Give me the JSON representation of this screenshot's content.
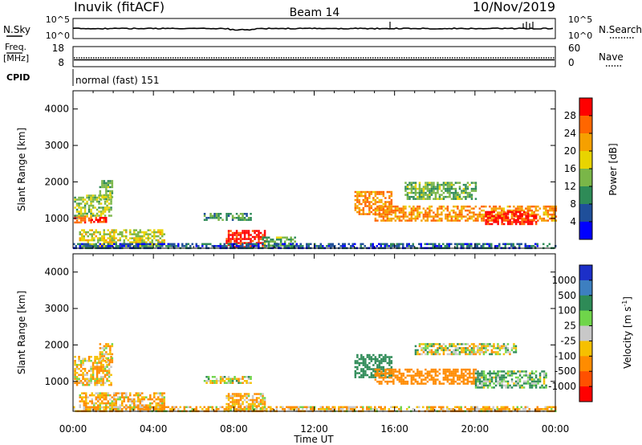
{
  "header": {
    "site": "Inuvik (fitACF)",
    "beam": "Beam 14",
    "date": "10/Nov/2019"
  },
  "noise_panel": {
    "left_label": "N.Sky",
    "right_label": "N.Search",
    "left_ticks": [
      "10^5",
      "10^0"
    ],
    "right_ticks": [
      "10^5",
      "10^0"
    ]
  },
  "freq_panel": {
    "left_label_top": "Freq.",
    "left_label_bottom": "[MHz]",
    "left_ticks": [
      "18",
      "8"
    ],
    "right_label": "Nave",
    "right_ticks": [
      "60",
      "0"
    ]
  },
  "cpid": {
    "label": "CPID",
    "mode": "normal (fast) 151"
  },
  "power_panel": {
    "ylabel": "Slant Range [km]",
    "yticks": [
      "4000",
      "3000",
      "2000",
      "1000"
    ],
    "colorbar_label": "Power [dB]",
    "colorbar_ticks": [
      "28",
      "24",
      "20",
      "16",
      "12",
      "8",
      "4"
    ],
    "colorbar_colors": [
      "#ff0000",
      "#ff6600",
      "#f6a000",
      "#e8d400",
      "#7ab648",
      "#2e8b57",
      "#1f4f9a",
      "#0000ff"
    ]
  },
  "velocity_panel": {
    "ylabel": "Slant Range [km]",
    "yticks": [
      "4000",
      "3000",
      "2000",
      "1000"
    ],
    "colorbar_label": "Velocity [m s",
    "colorbar_label_sup": "-1",
    "colorbar_label_end": "]",
    "colorbar_ticks": [
      "1000",
      "500",
      "100",
      "25",
      "-25",
      "-100",
      "-500",
      "-1000"
    ],
    "colorbar_colors": [
      "#1c2fc8",
      "#3d7fc0",
      "#2e8b57",
      "#6fd54a",
      "#c8c8c8",
      "#f6c000",
      "#ff8c00",
      "#ff5000",
      "#ff0000"
    ]
  },
  "xaxis": {
    "ticks": [
      "00:00",
      "04:00",
      "08:00",
      "12:00",
      "16:00",
      "20:00",
      "00:00"
    ],
    "label": "Time UT"
  },
  "chart_data": [
    {
      "type": "heatmap",
      "title": "Power",
      "x_unit": "UT hours",
      "xlim": [
        0,
        24
      ],
      "y_unit": "km",
      "ylim": [
        180,
        4500
      ],
      "z_unit": "dB",
      "zlim": [
        0,
        30
      ],
      "regions": [
        {
          "t0": 0.05,
          "t1": 0.9,
          "r0": 880,
          "r1": 1080,
          "z": 25
        },
        {
          "t0": 0.9,
          "t1": 1.6,
          "r0": 880,
          "r1": 1040,
          "z": 27
        },
        {
          "t0": 0.05,
          "t1": 1.9,
          "r0": 1080,
          "r1": 1650,
          "z": 14
        },
        {
          "t0": 1.3,
          "t1": 1.9,
          "r0": 1500,
          "r1": 2050,
          "z": 12
        },
        {
          "t0": 0.3,
          "t1": 4.5,
          "r0": 250,
          "r1": 700,
          "z": 16
        },
        {
          "t0": 6.5,
          "t1": 8.8,
          "r0": 950,
          "r1": 1150,
          "z": 10
        },
        {
          "t0": 7.6,
          "t1": 9.5,
          "r0": 200,
          "r1": 680,
          "z": 28
        },
        {
          "t0": 9.4,
          "t1": 11.0,
          "r0": 200,
          "r1": 500,
          "z": 12
        },
        {
          "t0": 14.0,
          "t1": 15.8,
          "r0": 1100,
          "r1": 1750,
          "z": 22
        },
        {
          "t0": 15.0,
          "t1": 24.0,
          "r0": 950,
          "r1": 1350,
          "z": 22
        },
        {
          "t0": 16.5,
          "t1": 20.0,
          "r0": 1550,
          "r1": 2000,
          "z": 12
        },
        {
          "t0": 20.5,
          "t1": 23.0,
          "r0": 850,
          "r1": 1200,
          "z": 28
        },
        {
          "t0": 0.0,
          "t1": 24.0,
          "r0": 180,
          "r1": 320,
          "z": 6
        }
      ]
    },
    {
      "type": "heatmap",
      "title": "Velocity",
      "x_unit": "UT hours",
      "xlim": [
        0,
        24
      ],
      "y_unit": "km",
      "ylim": [
        180,
        4500
      ],
      "z_unit": "m s-1",
      "zlim": [
        -1000,
        1000
      ],
      "regions": [
        {
          "t0": 0.05,
          "t1": 1.9,
          "r0": 900,
          "r1": 1700,
          "z": -100
        },
        {
          "t0": 1.3,
          "t1": 1.9,
          "r0": 1500,
          "r1": 2050,
          "z": -100
        },
        {
          "t0": 0.3,
          "t1": 4.5,
          "r0": 250,
          "r1": 700,
          "z": -100
        },
        {
          "t0": 6.5,
          "t1": 8.8,
          "r0": 950,
          "r1": 1150,
          "z": 0
        },
        {
          "t0": 7.6,
          "t1": 9.5,
          "r0": 200,
          "r1": 680,
          "z": -100
        },
        {
          "t0": 14.0,
          "t1": 15.8,
          "r0": 1100,
          "r1": 1750,
          "z": 300
        },
        {
          "t0": 15.0,
          "t1": 20.0,
          "r0": 950,
          "r1": 1350,
          "z": -300
        },
        {
          "t0": 20.0,
          "t1": 23.5,
          "r0": 850,
          "r1": 1300,
          "z": 100
        },
        {
          "t0": 17.0,
          "t1": 22.0,
          "r0": 1750,
          "r1": 2050,
          "z": 0
        },
        {
          "t0": 0.0,
          "t1": 24.0,
          "r0": 180,
          "r1": 320,
          "z": -100
        }
      ]
    }
  ]
}
